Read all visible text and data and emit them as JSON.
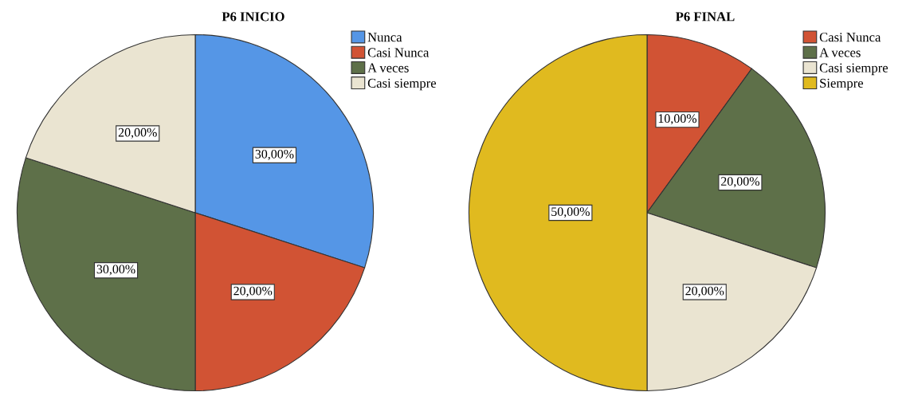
{
  "chart_data": [
    {
      "type": "pie",
      "title": "P6 INICIO",
      "categories": [
        "Nunca",
        "Casi Nunca",
        "A veces",
        "Casi siempre"
      ],
      "values": [
        30,
        20,
        30,
        20
      ],
      "colors": [
        "#5596e6",
        "#d15334",
        "#5e7049",
        "#eae4d1"
      ],
      "value_labels": [
        "30,00%",
        "20,00%",
        "30,00%",
        "20,00%"
      ],
      "legend": "top right"
    },
    {
      "type": "pie",
      "title": "P6 FINAL",
      "categories": [
        "Casi Nunca",
        "A veces",
        "Casi siempre",
        "Siempre"
      ],
      "values": [
        10,
        20,
        20,
        50
      ],
      "colors": [
        "#d15334",
        "#5e7049",
        "#eae4d1",
        "#e0ba1f"
      ],
      "value_labels": [
        "10,00%",
        "20,00%",
        "20,00%",
        "50,00%"
      ],
      "legend": "top right"
    }
  ]
}
